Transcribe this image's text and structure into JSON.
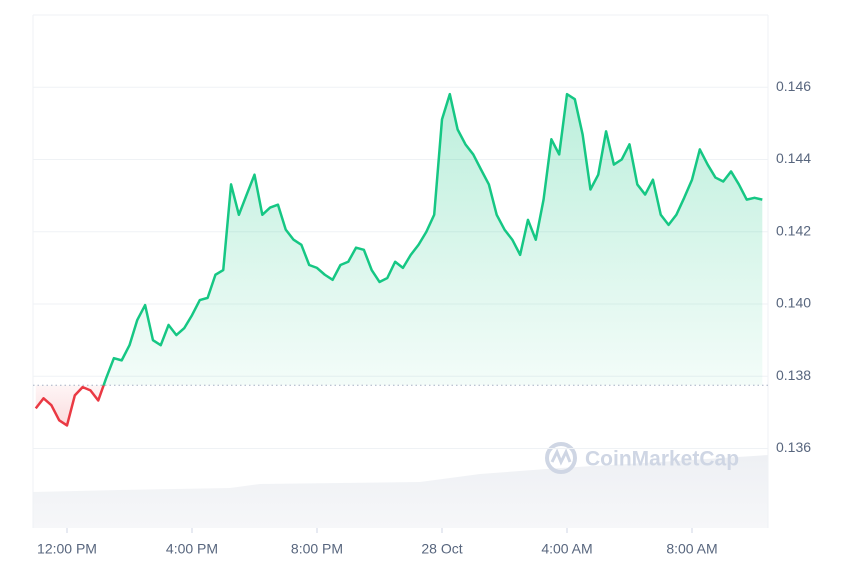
{
  "chart_data": {
    "type": "line",
    "watermark": "CoinMarketCap",
    "categories": [
      null,
      null,
      null,
      null,
      "12:00 PM",
      null,
      null,
      null,
      null,
      null,
      null,
      null,
      null,
      null,
      null,
      null,
      null,
      null,
      null,
      null,
      "4:00 PM",
      null,
      null,
      null,
      null,
      null,
      null,
      null,
      null,
      null,
      null,
      null,
      null,
      null,
      null,
      null,
      "8:00 PM",
      null,
      null,
      null,
      null,
      null,
      null,
      null,
      null,
      null,
      null,
      null,
      null,
      null,
      null,
      null,
      "28 Oct",
      null,
      null,
      null,
      null,
      null,
      null,
      null,
      null,
      null,
      null,
      null,
      null,
      null,
      null,
      null,
      "4:00 AM",
      null,
      null,
      null,
      null,
      null,
      null,
      null,
      null,
      null,
      null,
      null,
      null,
      null,
      null,
      null,
      "8:00 AM",
      null,
      null,
      null,
      null,
      null,
      null,
      null,
      null,
      null
    ],
    "values": [
      0.13711,
      0.13739,
      0.1372,
      0.13678,
      0.13664,
      0.13747,
      0.1377,
      0.13761,
      0.13733,
      0.13794,
      0.1385,
      0.13844,
      0.13886,
      0.13956,
      0.13997,
      0.139,
      0.13886,
      0.13942,
      0.13914,
      0.13933,
      0.13969,
      0.14011,
      0.14017,
      0.14081,
      0.14094,
      0.14331,
      0.14247,
      0.14303,
      0.14358,
      0.14247,
      0.14267,
      0.14275,
      0.14206,
      0.14178,
      0.14164,
      0.14108,
      0.141,
      0.14081,
      0.14067,
      0.14108,
      0.14117,
      0.14156,
      0.1415,
      0.14094,
      0.14061,
      0.14072,
      0.14117,
      0.141,
      0.14136,
      0.14164,
      0.142,
      0.14247,
      0.14511,
      0.14581,
      0.14483,
      0.14442,
      0.14414,
      0.14372,
      0.14331,
      0.14247,
      0.14206,
      0.14178,
      0.14136,
      0.14233,
      0.14178,
      0.14289,
      0.14456,
      0.14414,
      0.14581,
      0.14567,
      0.14469,
      0.14317,
      0.14358,
      0.14478,
      0.14386,
      0.144,
      0.14442,
      0.14331,
      0.14303,
      0.14344,
      0.14247,
      0.14219,
      0.14247,
      0.14294,
      0.14344,
      0.14428,
      0.14386,
      0.1435,
      0.14339,
      0.14367,
      0.14331,
      0.14289,
      0.14294,
      0.14289
    ],
    "baseline": 0.13775,
    "up_color": "#16c784",
    "down_color": "#ea3943",
    "ylim": [
      0.1338,
      0.148
    ],
    "yticks": [
      0.136,
      0.138,
      {
        "value": 0.14,
        "label": "0.140"
      },
      0.142,
      0.144,
      0.146
    ],
    "grid": true
  }
}
